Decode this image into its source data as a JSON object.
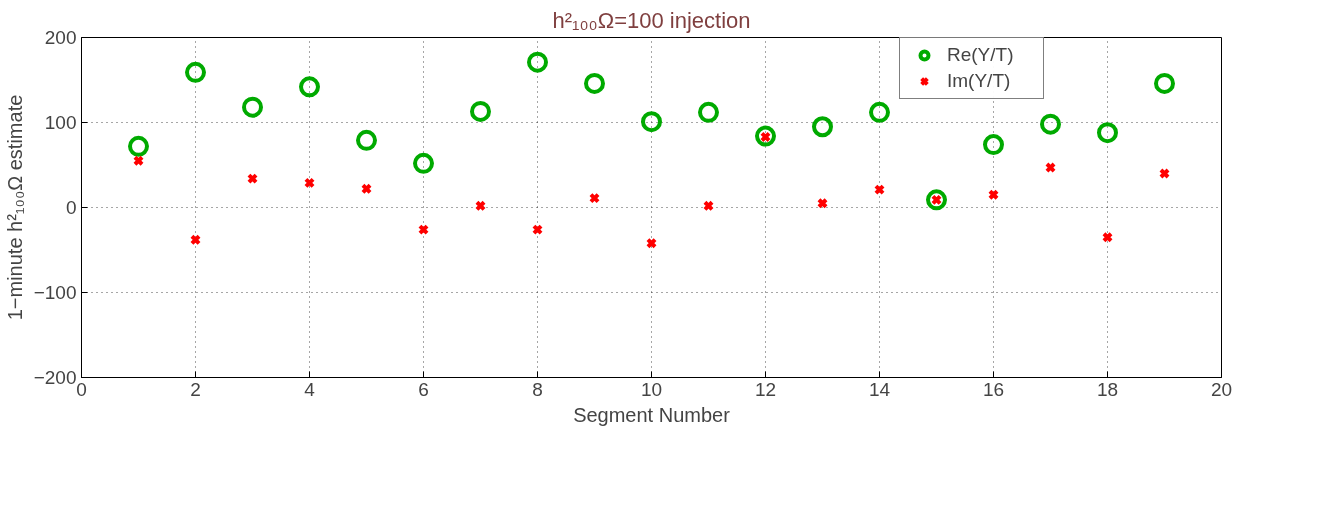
{
  "chart_data": {
    "type": "scatter",
    "title": "h²₁₀₀Ω=100 injection",
    "xlabel": "Segment Number",
    "ylabel": "1−minute h²₁₀₀Ω estimate",
    "x": [
      1,
      2,
      3,
      4,
      5,
      6,
      7,
      8,
      9,
      10,
      11,
      12,
      13,
      14,
      15,
      16,
      17,
      18,
      19
    ],
    "series": [
      {
        "name": "Re(Y/T)",
        "color": "#00aa00",
        "marker": "circle",
        "values": [
          72,
          159,
          118,
          142,
          79,
          52,
          113,
          171,
          146,
          101,
          112,
          84,
          95,
          112,
          9,
          74,
          98,
          88,
          146
        ]
      },
      {
        "name": "Im(Y/T)",
        "color": "#ff0000",
        "marker": "cross",
        "values": [
          55,
          -38,
          34,
          29,
          22,
          -26,
          2,
          -26,
          11,
          -42,
          2,
          83,
          5,
          21,
          9,
          15,
          47,
          -35,
          40
        ]
      }
    ],
    "xlim": [
      0,
      20
    ],
    "xticks": [
      0,
      2,
      4,
      6,
      8,
      10,
      12,
      14,
      16,
      18,
      20
    ],
    "ylim": [
      -200,
      200
    ],
    "yticks": [
      -200,
      -100,
      0,
      100,
      200
    ],
    "grid": true,
    "legend": "top right"
  }
}
